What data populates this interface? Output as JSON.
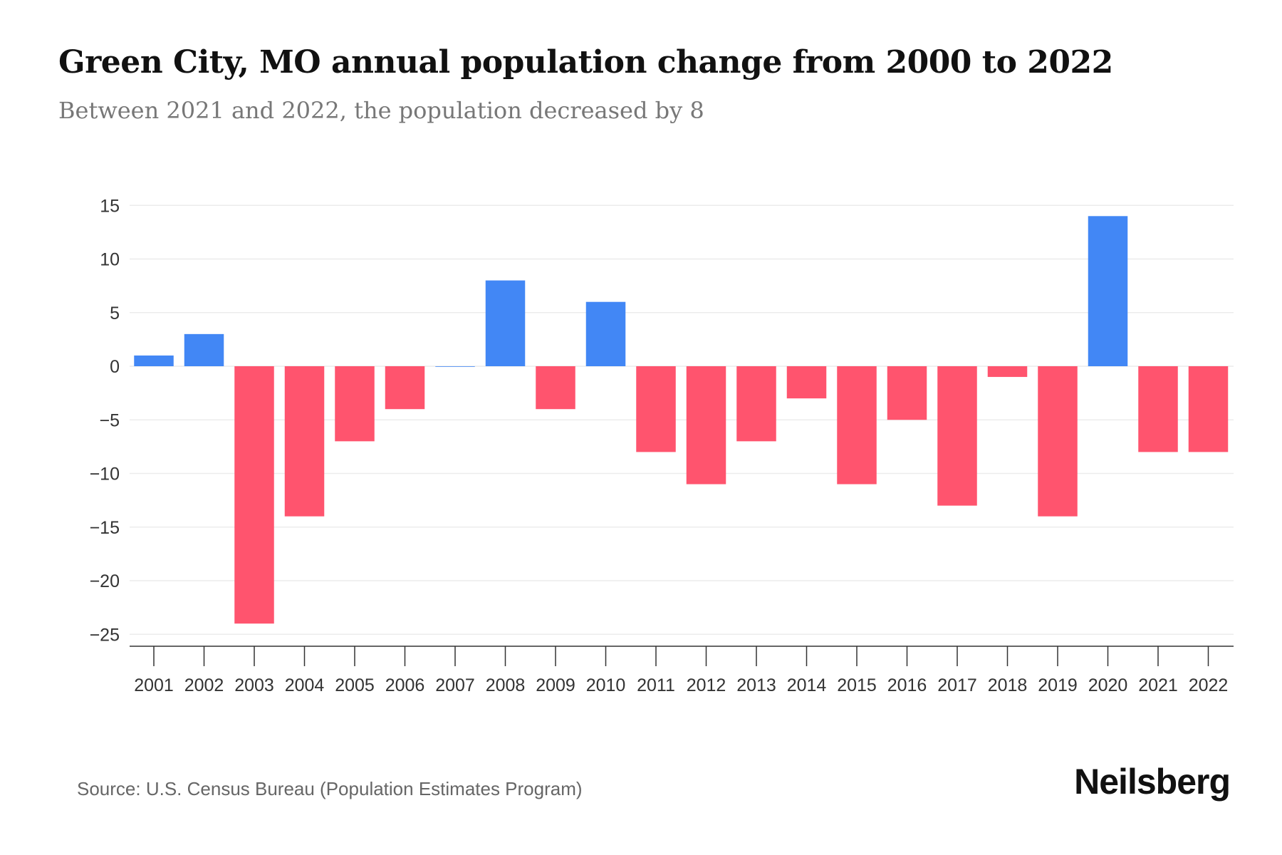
{
  "chart_data": {
    "type": "bar",
    "title": "Green City, MO annual population change from 2000 to 2022",
    "subtitle": "Between 2021 and 2022, the population decreased by 8",
    "xlabel": "",
    "ylabel": "",
    "categories": [
      "2001",
      "2002",
      "2003",
      "2004",
      "2005",
      "2006",
      "2007",
      "2008",
      "2009",
      "2010",
      "2011",
      "2012",
      "2013",
      "2014",
      "2015",
      "2016",
      "2017",
      "2018",
      "2019",
      "2020",
      "2021",
      "2022"
    ],
    "values": [
      1,
      3,
      -24,
      -14,
      -7,
      -4,
      0,
      8,
      -4,
      6,
      -8,
      -11,
      -7,
      -3,
      -11,
      -5,
      -13,
      -1,
      -14,
      14,
      -8,
      -8
    ],
    "ylim": [
      -26,
      16
    ],
    "yticks": [
      15,
      10,
      5,
      0,
      -5,
      -10,
      -15,
      -20,
      -25
    ],
    "ytick_labels": [
      "15",
      "10",
      "5",
      "0",
      "−5",
      "−10",
      "−15",
      "−20",
      "−25"
    ],
    "grid": true,
    "colors": {
      "positive": "#4287f5",
      "negative": "#ff546e"
    }
  },
  "footer": {
    "source": "Source: U.S. Census Bureau (Population Estimates Program)",
    "logo": "Neilsberg"
  }
}
